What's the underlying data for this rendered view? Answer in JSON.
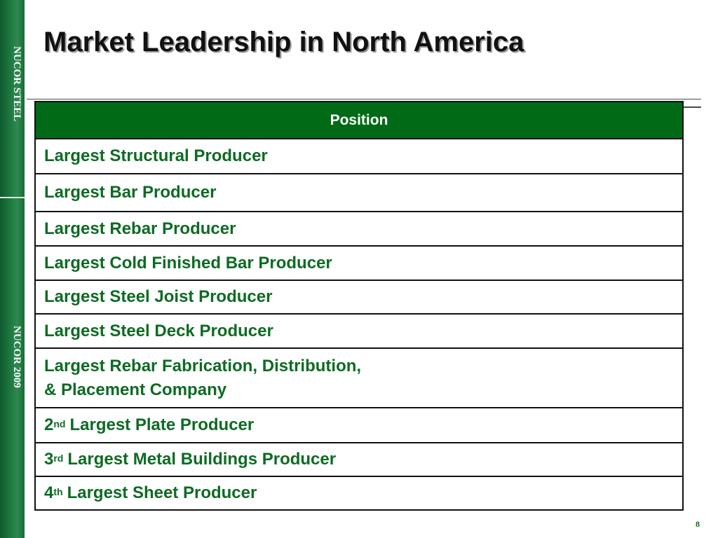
{
  "sidebar": {
    "top_label": "NUCOR STEEL",
    "bottom_label": "NUCOR 2009"
  },
  "title": "Market Leadership in North America",
  "table": {
    "header": "Position",
    "rows": [
      {
        "prefix": "",
        "suffix": "",
        "text": "Largest Structural Producer"
      },
      {
        "prefix": "",
        "suffix": "",
        "text": "Largest Bar Producer"
      },
      {
        "prefix": "",
        "suffix": "",
        "text": "Largest Rebar Producer"
      },
      {
        "prefix": "",
        "suffix": "",
        "text": "Largest Cold Finished Bar Producer"
      },
      {
        "prefix": "",
        "suffix": "",
        "text": "Largest Steel Joist Producer"
      },
      {
        "prefix": "",
        "suffix": "",
        "text": "Largest Steel Deck Producer"
      },
      {
        "prefix": "",
        "suffix": "",
        "text": "Largest Rebar Fabrication, Distribution,\n& Placement Company"
      },
      {
        "prefix": "2",
        "suffix": "nd",
        "text": "Largest Plate Producer"
      },
      {
        "prefix": "3",
        "suffix": "rd",
        "text": "Largest Metal Buildings Producer"
      },
      {
        "prefix": "4",
        "suffix": "th",
        "text": "Largest Sheet Producer"
      }
    ]
  },
  "page_number": "8",
  "colors": {
    "brand_green": "#006a16",
    "text_green": "#0d6b23",
    "sidebar_green": "#1f7a41"
  }
}
